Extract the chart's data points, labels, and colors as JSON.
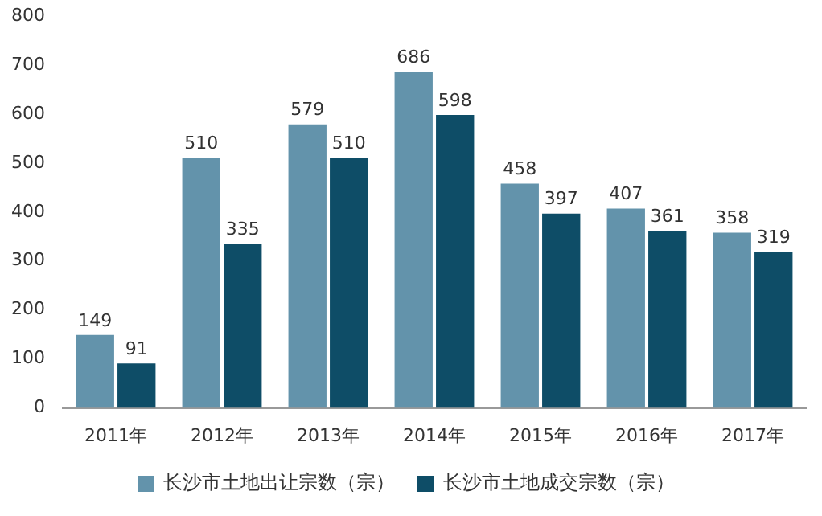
{
  "chart_data": {
    "type": "bar",
    "categories": [
      "2011年",
      "2012年",
      "2013年",
      "2014年",
      "2015年",
      "2016年",
      "2017年"
    ],
    "series": [
      {
        "name": "长沙市土地出让宗数（宗）",
        "color": "#6393ab",
        "values": [
          149,
          510,
          579,
          686,
          458,
          407,
          358
        ]
      },
      {
        "name": "长沙市土地成交宗数（宗）",
        "color": "#0e4d67",
        "values": [
          91,
          335,
          510,
          598,
          397,
          361,
          319
        ]
      }
    ],
    "ylim": [
      0,
      800
    ],
    "yticks": [
      0,
      100,
      200,
      300,
      400,
      500,
      600,
      700,
      800
    ],
    "grid": false,
    "legend": "bottom",
    "data_labels": true
  }
}
